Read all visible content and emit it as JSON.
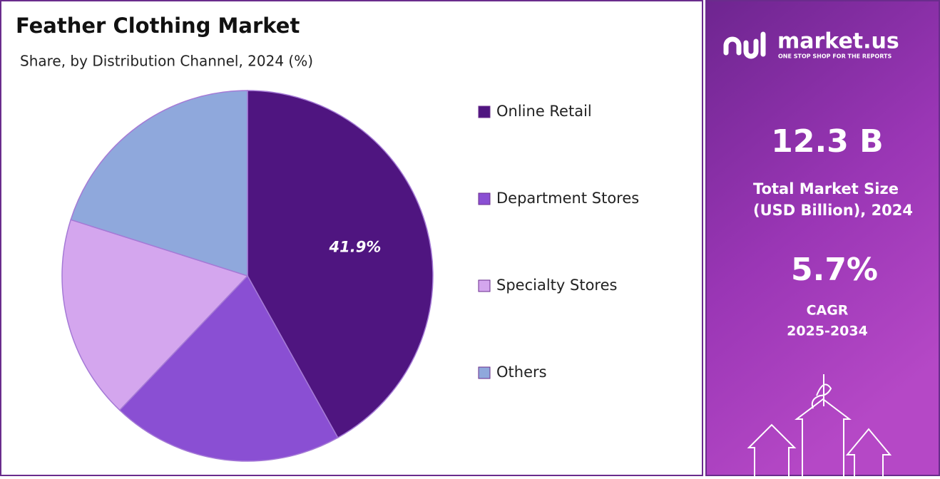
{
  "chart_data": {
    "type": "pie",
    "title": "Feather Clothing Market",
    "subtitle": "Share, by Distribution Channel, 2024 (%)",
    "categories": [
      "Online Retail",
      "Department Stores",
      "Specialty Stores",
      "Others"
    ],
    "values": [
      41.9,
      20.2,
      17.8,
      20.1
    ],
    "value_labels": [
      "41.9%",
      null,
      null,
      null
    ],
    "colors": [
      "#4f1580",
      "#8a4fd3",
      "#d4a6ee",
      "#8fa8dc"
    ]
  },
  "panel": {
    "brand": "market.us",
    "tagline": "ONE STOP SHOP FOR THE REPORTS",
    "market_size": "12.3 B",
    "market_size_label_1": "Total Market Size",
    "market_size_label_2": "(USD Billion), 2024",
    "cagr": "5.7%",
    "cagr_label_1": "CAGR",
    "cagr_label_2": "2025-2034"
  }
}
